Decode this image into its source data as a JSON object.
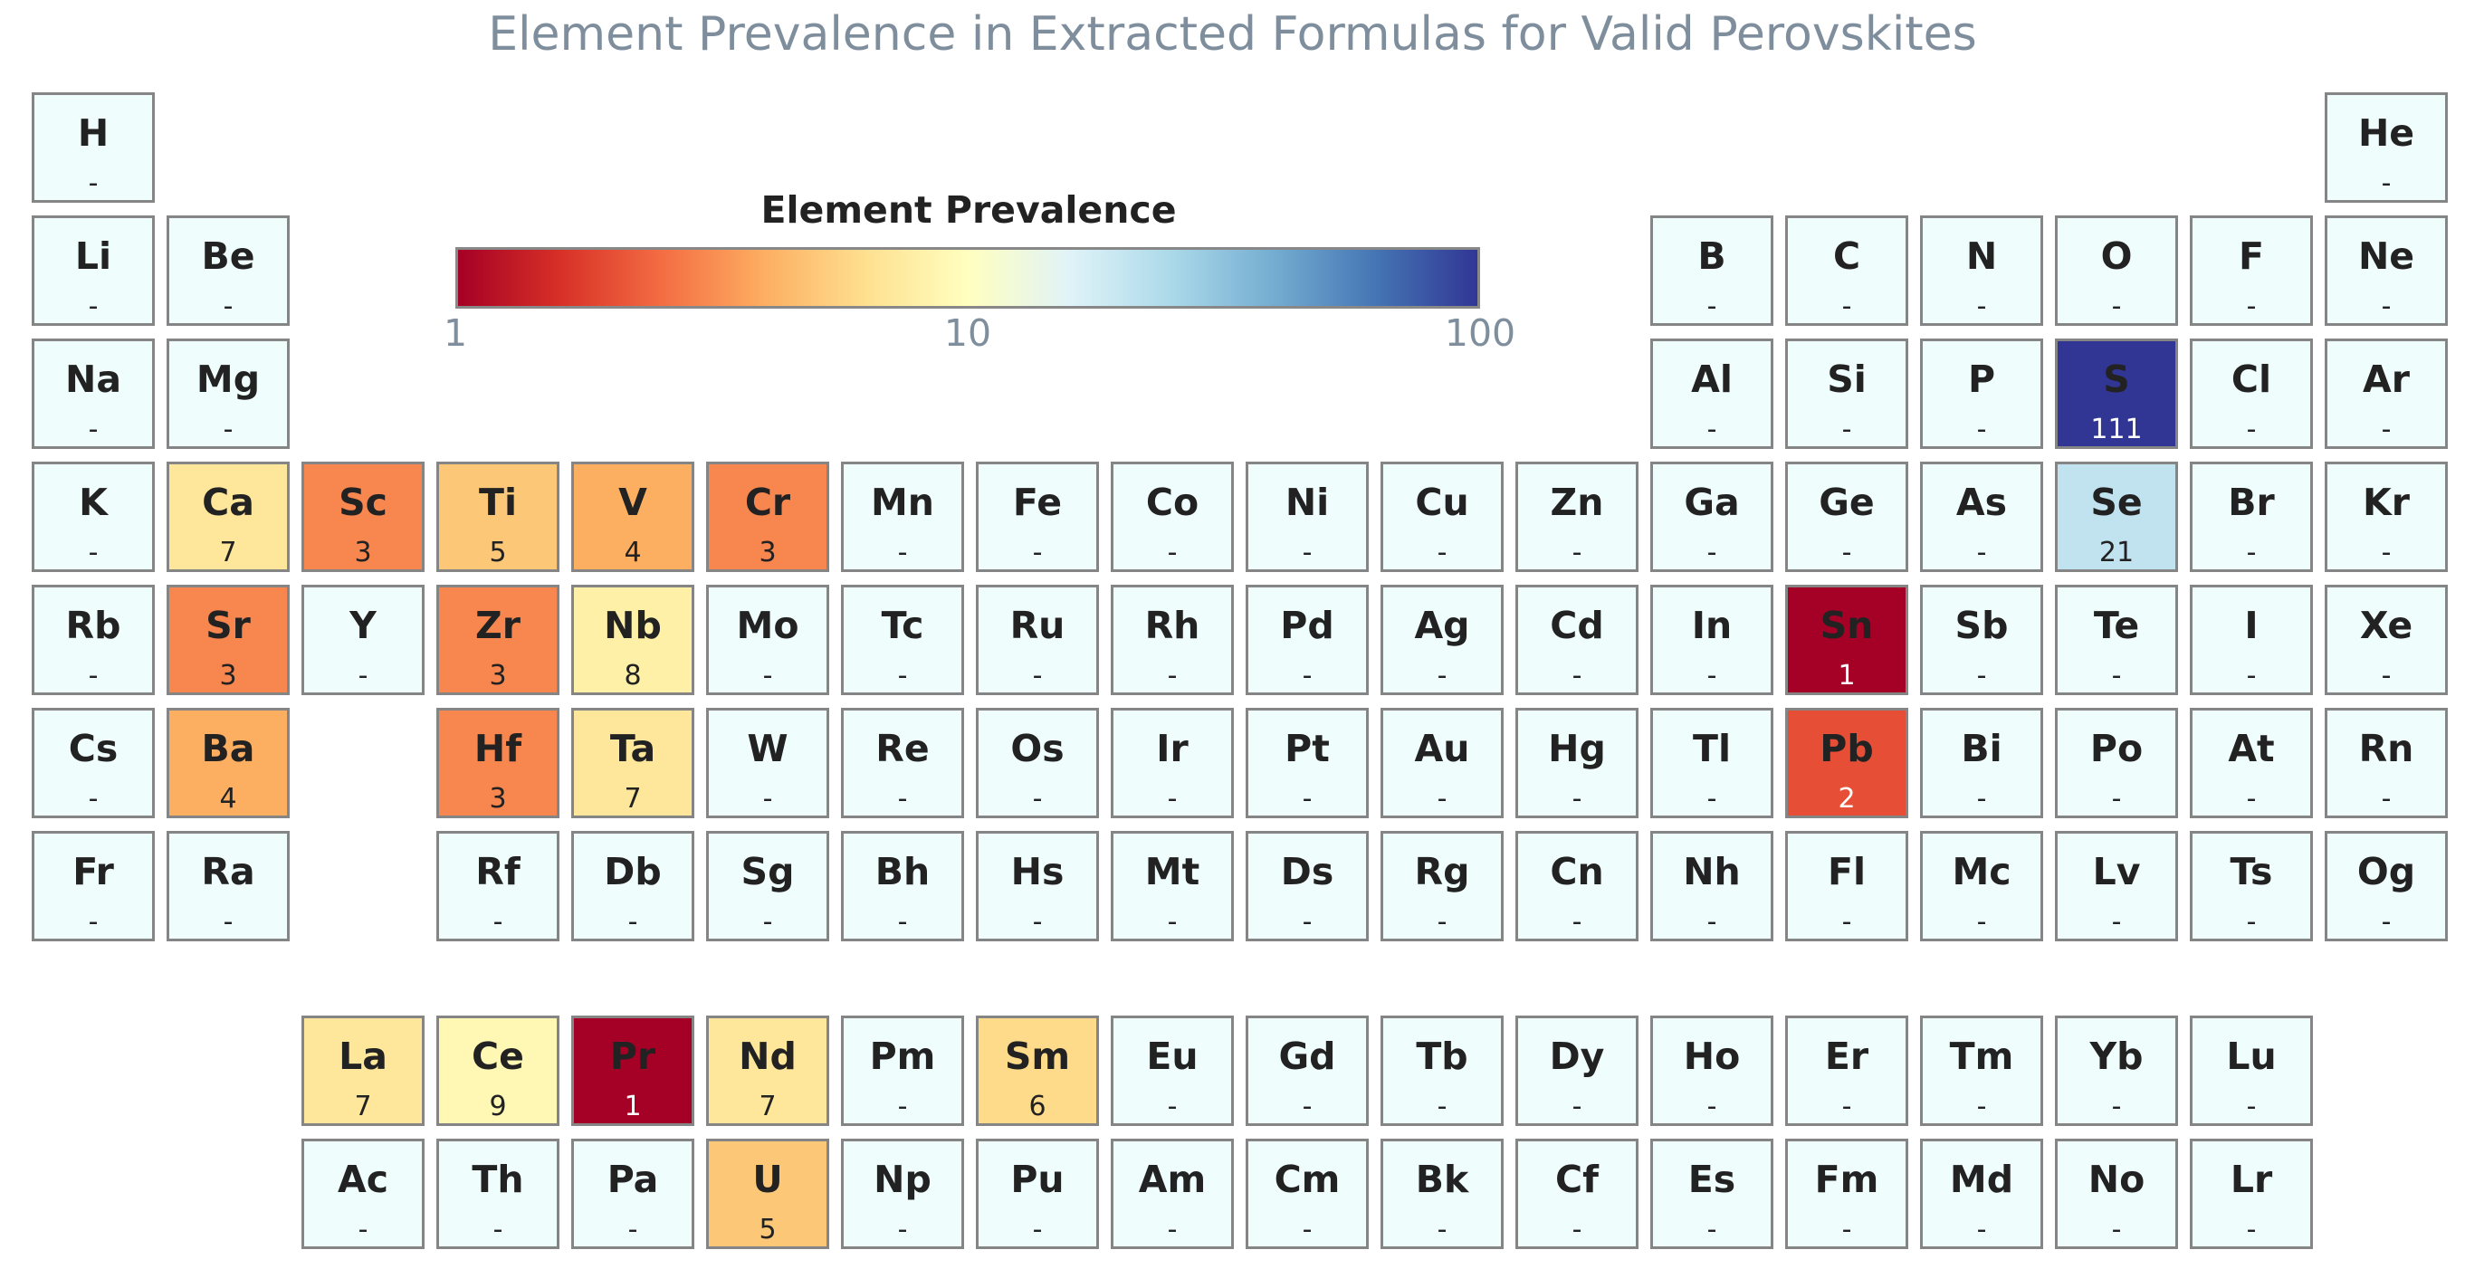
{
  "chart_data": {
    "type": "heatmap",
    "title": "Element Prevalence in Extracted Formulas for Valid Perovskites",
    "colorbar": {
      "title": "Element Prevalence",
      "scale": "log",
      "range": [
        1,
        100
      ],
      "ticks": [
        "1",
        "10",
        "100"
      ],
      "colormap": "RdYlBu",
      "stops": [
        "#a50026",
        "#d73027",
        "#f46d43",
        "#fdae61",
        "#fee090",
        "#ffffbf",
        "#e0f3f8",
        "#abd9e9",
        "#74add1",
        "#4575b4",
        "#313695"
      ]
    },
    "missing_label": "-",
    "missing_color": "#effdfd",
    "elements": [
      {
        "symbol": "H",
        "row": 1,
        "col": 1,
        "value": null
      },
      {
        "symbol": "He",
        "row": 1,
        "col": 18,
        "value": null
      },
      {
        "symbol": "Li",
        "row": 2,
        "col": 1,
        "value": null
      },
      {
        "symbol": "Be",
        "row": 2,
        "col": 2,
        "value": null
      },
      {
        "symbol": "B",
        "row": 2,
        "col": 13,
        "value": null
      },
      {
        "symbol": "C",
        "row": 2,
        "col": 14,
        "value": null
      },
      {
        "symbol": "N",
        "row": 2,
        "col": 15,
        "value": null
      },
      {
        "symbol": "O",
        "row": 2,
        "col": 16,
        "value": null
      },
      {
        "symbol": "F",
        "row": 2,
        "col": 17,
        "value": null
      },
      {
        "symbol": "Ne",
        "row": 2,
        "col": 18,
        "value": null
      },
      {
        "symbol": "Na",
        "row": 3,
        "col": 1,
        "value": null
      },
      {
        "symbol": "Mg",
        "row": 3,
        "col": 2,
        "value": null
      },
      {
        "symbol": "Al",
        "row": 3,
        "col": 13,
        "value": null
      },
      {
        "symbol": "Si",
        "row": 3,
        "col": 14,
        "value": null
      },
      {
        "symbol": "P",
        "row": 3,
        "col": 15,
        "value": null
      },
      {
        "symbol": "S",
        "row": 3,
        "col": 16,
        "value": 111
      },
      {
        "symbol": "Cl",
        "row": 3,
        "col": 17,
        "value": null
      },
      {
        "symbol": "Ar",
        "row": 3,
        "col": 18,
        "value": null
      },
      {
        "symbol": "K",
        "row": 4,
        "col": 1,
        "value": null
      },
      {
        "symbol": "Ca",
        "row": 4,
        "col": 2,
        "value": 7
      },
      {
        "symbol": "Sc",
        "row": 4,
        "col": 3,
        "value": 3
      },
      {
        "symbol": "Ti",
        "row": 4,
        "col": 4,
        "value": 5
      },
      {
        "symbol": "V",
        "row": 4,
        "col": 5,
        "value": 4
      },
      {
        "symbol": "Cr",
        "row": 4,
        "col": 6,
        "value": 3
      },
      {
        "symbol": "Mn",
        "row": 4,
        "col": 7,
        "value": null
      },
      {
        "symbol": "Fe",
        "row": 4,
        "col": 8,
        "value": null
      },
      {
        "symbol": "Co",
        "row": 4,
        "col": 9,
        "value": null
      },
      {
        "symbol": "Ni",
        "row": 4,
        "col": 10,
        "value": null
      },
      {
        "symbol": "Cu",
        "row": 4,
        "col": 11,
        "value": null
      },
      {
        "symbol": "Zn",
        "row": 4,
        "col": 12,
        "value": null
      },
      {
        "symbol": "Ga",
        "row": 4,
        "col": 13,
        "value": null
      },
      {
        "symbol": "Ge",
        "row": 4,
        "col": 14,
        "value": null
      },
      {
        "symbol": "As",
        "row": 4,
        "col": 15,
        "value": null
      },
      {
        "symbol": "Se",
        "row": 4,
        "col": 16,
        "value": 21
      },
      {
        "symbol": "Br",
        "row": 4,
        "col": 17,
        "value": null
      },
      {
        "symbol": "Kr",
        "row": 4,
        "col": 18,
        "value": null
      },
      {
        "symbol": "Rb",
        "row": 5,
        "col": 1,
        "value": null
      },
      {
        "symbol": "Sr",
        "row": 5,
        "col": 2,
        "value": 3
      },
      {
        "symbol": "Y",
        "row": 5,
        "col": 3,
        "value": null
      },
      {
        "symbol": "Zr",
        "row": 5,
        "col": 4,
        "value": 3
      },
      {
        "symbol": "Nb",
        "row": 5,
        "col": 5,
        "value": 8
      },
      {
        "symbol": "Mo",
        "row": 5,
        "col": 6,
        "value": null
      },
      {
        "symbol": "Tc",
        "row": 5,
        "col": 7,
        "value": null
      },
      {
        "symbol": "Ru",
        "row": 5,
        "col": 8,
        "value": null
      },
      {
        "symbol": "Rh",
        "row": 5,
        "col": 9,
        "value": null
      },
      {
        "symbol": "Pd",
        "row": 5,
        "col": 10,
        "value": null
      },
      {
        "symbol": "Ag",
        "row": 5,
        "col": 11,
        "value": null
      },
      {
        "symbol": "Cd",
        "row": 5,
        "col": 12,
        "value": null
      },
      {
        "symbol": "In",
        "row": 5,
        "col": 13,
        "value": null
      },
      {
        "symbol": "Sn",
        "row": 5,
        "col": 14,
        "value": 1
      },
      {
        "symbol": "Sb",
        "row": 5,
        "col": 15,
        "value": null
      },
      {
        "symbol": "Te",
        "row": 5,
        "col": 16,
        "value": null
      },
      {
        "symbol": "I",
        "row": 5,
        "col": 17,
        "value": null
      },
      {
        "symbol": "Xe",
        "row": 5,
        "col": 18,
        "value": null
      },
      {
        "symbol": "Cs",
        "row": 6,
        "col": 1,
        "value": null
      },
      {
        "symbol": "Ba",
        "row": 6,
        "col": 2,
        "value": 4
      },
      {
        "symbol": "Hf",
        "row": 6,
        "col": 4,
        "value": 3
      },
      {
        "symbol": "Ta",
        "row": 6,
        "col": 5,
        "value": 7
      },
      {
        "symbol": "W",
        "row": 6,
        "col": 6,
        "value": null
      },
      {
        "symbol": "Re",
        "row": 6,
        "col": 7,
        "value": null
      },
      {
        "symbol": "Os",
        "row": 6,
        "col": 8,
        "value": null
      },
      {
        "symbol": "Ir",
        "row": 6,
        "col": 9,
        "value": null
      },
      {
        "symbol": "Pt",
        "row": 6,
        "col": 10,
        "value": null
      },
      {
        "symbol": "Au",
        "row": 6,
        "col": 11,
        "value": null
      },
      {
        "symbol": "Hg",
        "row": 6,
        "col": 12,
        "value": null
      },
      {
        "symbol": "Tl",
        "row": 6,
        "col": 13,
        "value": null
      },
      {
        "symbol": "Pb",
        "row": 6,
        "col": 14,
        "value": 2
      },
      {
        "symbol": "Bi",
        "row": 6,
        "col": 15,
        "value": null
      },
      {
        "symbol": "Po",
        "row": 6,
        "col": 16,
        "value": null
      },
      {
        "symbol": "At",
        "row": 6,
        "col": 17,
        "value": null
      },
      {
        "symbol": "Rn",
        "row": 6,
        "col": 18,
        "value": null
      },
      {
        "symbol": "Fr",
        "row": 7,
        "col": 1,
        "value": null
      },
      {
        "symbol": "Ra",
        "row": 7,
        "col": 2,
        "value": null
      },
      {
        "symbol": "Rf",
        "row": 7,
        "col": 4,
        "value": null
      },
      {
        "symbol": "Db",
        "row": 7,
        "col": 5,
        "value": null
      },
      {
        "symbol": "Sg",
        "row": 7,
        "col": 6,
        "value": null
      },
      {
        "symbol": "Bh",
        "row": 7,
        "col": 7,
        "value": null
      },
      {
        "symbol": "Hs",
        "row": 7,
        "col": 8,
        "value": null
      },
      {
        "symbol": "Mt",
        "row": 7,
        "col": 9,
        "value": null
      },
      {
        "symbol": "Ds",
        "row": 7,
        "col": 10,
        "value": null
      },
      {
        "symbol": "Rg",
        "row": 7,
        "col": 11,
        "value": null
      },
      {
        "symbol": "Cn",
        "row": 7,
        "col": 12,
        "value": null
      },
      {
        "symbol": "Nh",
        "row": 7,
        "col": 13,
        "value": null
      },
      {
        "symbol": "Fl",
        "row": 7,
        "col": 14,
        "value": null
      },
      {
        "symbol": "Mc",
        "row": 7,
        "col": 15,
        "value": null
      },
      {
        "symbol": "Lv",
        "row": 7,
        "col": 16,
        "value": null
      },
      {
        "symbol": "Ts",
        "row": 7,
        "col": 17,
        "value": null
      },
      {
        "symbol": "Og",
        "row": 7,
        "col": 18,
        "value": null
      },
      {
        "symbol": "La",
        "row": 9,
        "col": 3,
        "value": 7
      },
      {
        "symbol": "Ce",
        "row": 9,
        "col": 4,
        "value": 9
      },
      {
        "symbol": "Pr",
        "row": 9,
        "col": 5,
        "value": 1
      },
      {
        "symbol": "Nd",
        "row": 9,
        "col": 6,
        "value": 7
      },
      {
        "symbol": "Pm",
        "row": 9,
        "col": 7,
        "value": null
      },
      {
        "symbol": "Sm",
        "row": 9,
        "col": 8,
        "value": 6
      },
      {
        "symbol": "Eu",
        "row": 9,
        "col": 9,
        "value": null
      },
      {
        "symbol": "Gd",
        "row": 9,
        "col": 10,
        "value": null
      },
      {
        "symbol": "Tb",
        "row": 9,
        "col": 11,
        "value": null
      },
      {
        "symbol": "Dy",
        "row": 9,
        "col": 12,
        "value": null
      },
      {
        "symbol": "Ho",
        "row": 9,
        "col": 13,
        "value": null
      },
      {
        "symbol": "Er",
        "row": 9,
        "col": 14,
        "value": null
      },
      {
        "symbol": "Tm",
        "row": 9,
        "col": 15,
        "value": null
      },
      {
        "symbol": "Yb",
        "row": 9,
        "col": 16,
        "value": null
      },
      {
        "symbol": "Lu",
        "row": 9,
        "col": 17,
        "value": null
      },
      {
        "symbol": "Ac",
        "row": 10,
        "col": 3,
        "value": null
      },
      {
        "symbol": "Th",
        "row": 10,
        "col": 4,
        "value": null
      },
      {
        "symbol": "Pa",
        "row": 10,
        "col": 5,
        "value": null
      },
      {
        "symbol": "U",
        "row": 10,
        "col": 6,
        "value": 5
      },
      {
        "symbol": "Np",
        "row": 10,
        "col": 7,
        "value": null
      },
      {
        "symbol": "Pu",
        "row": 10,
        "col": 8,
        "value": null
      },
      {
        "symbol": "Am",
        "row": 10,
        "col": 9,
        "value": null
      },
      {
        "symbol": "Cm",
        "row": 10,
        "col": 10,
        "value": null
      },
      {
        "symbol": "Bk",
        "row": 10,
        "col": 11,
        "value": null
      },
      {
        "symbol": "Cf",
        "row": 10,
        "col": 12,
        "value": null
      },
      {
        "symbol": "Es",
        "row": 10,
        "col": 13,
        "value": null
      },
      {
        "symbol": "Fm",
        "row": 10,
        "col": 14,
        "value": null
      },
      {
        "symbol": "Md",
        "row": 10,
        "col": 15,
        "value": null
      },
      {
        "symbol": "No",
        "row": 10,
        "col": 16,
        "value": null
      },
      {
        "symbol": "Lr",
        "row": 10,
        "col": 17,
        "value": null
      }
    ]
  }
}
